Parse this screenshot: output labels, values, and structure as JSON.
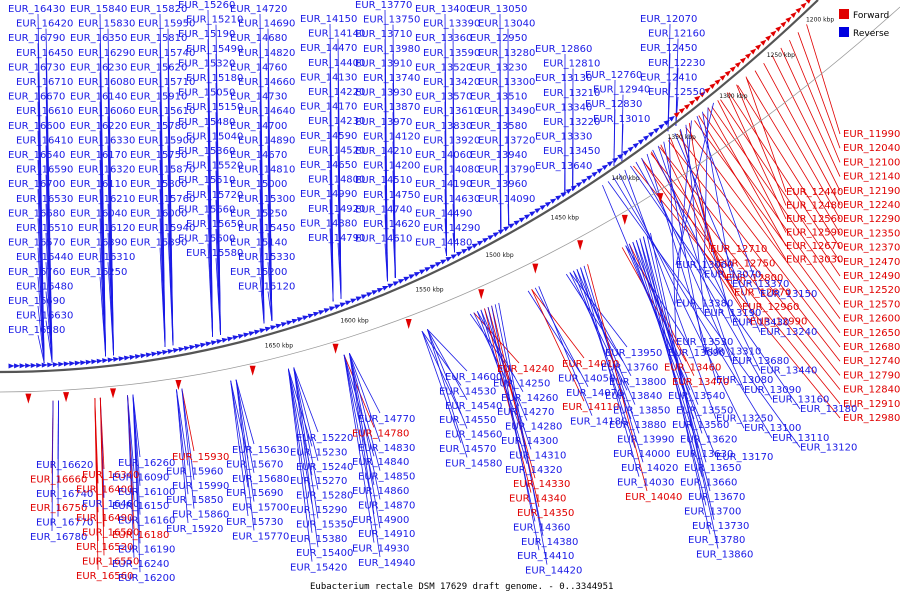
{
  "caption": "Eubacterium rectale DSM 17629 draft genome. - 0..3344951",
  "legend": [
    {
      "label": "Forward",
      "color": "#e00000"
    },
    {
      "label": "Reverse",
      "color": "#0000e0"
    }
  ],
  "colors": {
    "forward": "#e00000",
    "reverse": "#1a1ae6",
    "backbone": "#555555"
  },
  "ticks": [
    "1200 kbp",
    "1250 kbp",
    "1300 kbp",
    "1350 kbp",
    "1400 kbp",
    "1450 kbp",
    "1500 kbp",
    "1550 kbp",
    "1600 kbp",
    "1650 kbp"
  ],
  "top_labels": [
    [
      "EUR_16430",
      "EUR_16420",
      "EUR_16790",
      "EUR_16450",
      "EUR_16730",
      "EUR_16710",
      "EUR_16670",
      "EUR_16610",
      "EUR_16600",
      "EUR_16410",
      "EUR_16540",
      "EUR_16590",
      "EUR_16700",
      "EUR_16530",
      "EUR_16680",
      "EUR_16510",
      "EUR_16570",
      "EUR_16440",
      "EUR_16760",
      "EUR_16480",
      "EUR_16690",
      "EUR_16630",
      "EUR_16580"
    ],
    [
      "EUR_15840",
      "EUR_15830",
      "EUR_16350",
      "EUR_16290",
      "EUR_16230",
      "EUR_16080",
      "EUR_16140",
      "EUR_16060",
      "EUR_16220",
      "EUR_16330",
      "EUR_16170",
      "EUR_16320",
      "EUR_16110",
      "EUR_16210",
      "EUR_16040",
      "EUR_16120",
      "EUR_16390",
      "EUR_16310",
      "EUR_16250"
    ],
    [
      "EUR_15820",
      "EUR_15950",
      "EUR_15810",
      "EUR_15740",
      "EUR_15620",
      "EUR_15710",
      "EUR_15910",
      "EUR_15610",
      "EUR_15780",
      "EUR_15900",
      "EUR_15750",
      "EUR_15870",
      "EUR_15800",
      "EUR_15760",
      "EUR_16000",
      "EUR_15940",
      "EUR_15890"
    ],
    [
      "EUR_15260",
      "EUR_15210",
      "EUR_15190",
      "EUR_15490",
      "EUR_15320",
      "EUR_15180",
      "EUR_15050",
      "EUR_15150",
      "EUR_15480",
      "EUR_15040",
      "EUR_15360",
      "EUR_15520",
      "EUR_15510",
      "EUR_15720",
      "EUR_15660",
      "EUR_15650",
      "EUR_15600",
      "EUR_15580"
    ],
    [
      "EUR_14720",
      "EUR_14690",
      "EUR_14680",
      "EUR_14820",
      "EUR_14760",
      "EUR_14660",
      "EUR_14730",
      "EUR_14640",
      "EUR_14700",
      "EUR_14890",
      "EUR_14670",
      "EUR_14810",
      "EUR_15000",
      "EUR_15300",
      "EUR_15250",
      "EUR_15450",
      "EUR_15140",
      "EUR_15330",
      "EUR_15200",
      "EUR_15120"
    ],
    [
      "EUR_14150",
      "EUR_14140",
      "EUR_14470",
      "EUR_14400",
      "EUR_14130",
      "EUR_14220",
      "EUR_14170",
      "EUR_14230",
      "EUR_14590",
      "EUR_14520",
      "EUR_14650",
      "EUR_14800",
      "EUR_14990",
      "EUR_14920",
      "EUR_14880",
      "EUR_14790"
    ],
    [
      "EUR_13770",
      "EUR_13750",
      "EUR_13710",
      "EUR_13980",
      "EUR_13910",
      "EUR_13740",
      "EUR_13930",
      "EUR_13870",
      "EUR_13970",
      "EUR_14120",
      "EUR_14210",
      "EUR_14200",
      "EUR_14510",
      "EUR_14750",
      "EUR_14740",
      "EUR_14620",
      "EUR_14610"
    ],
    [
      "EUR_13400",
      "EUR_13390",
      "EUR_13360",
      "EUR_13590",
      "EUR_13520",
      "EUR_13420",
      "EUR_13570",
      "EUR_13610",
      "EUR_13830",
      "EUR_13920",
      "EUR_14060",
      "EUR_14080",
      "EUR_14190",
      "EUR_14630",
      "EUR_14490",
      "EUR_14290",
      "EUR_14480"
    ],
    [
      "EUR_13050",
      "EUR_13040",
      "EUR_12950",
      "EUR_13280",
      "EUR_13230",
      "EUR_13300",
      "EUR_13510",
      "EUR_13490",
      "EUR_13580",
      "EUR_13720",
      "EUR_13940",
      "EUR_13790",
      "EUR_13960",
      "EUR_14090"
    ],
    [
      "EUR_12860",
      "EUR_12810",
      "EUR_13130",
      "EUR_13210",
      "EUR_13340",
      "EUR_13220",
      "EUR_13330",
      "EUR_13450",
      "EUR_13640"
    ],
    [
      "EUR_12760",
      "EUR_12940",
      "EUR_12830",
      "EUR_13010"
    ],
    [
      "EUR_12070",
      "EUR_12160",
      "EUR_12450",
      "EUR_12230",
      "EUR_12410",
      "EUR_12550"
    ]
  ],
  "right_labels": [
    {
      "text": "EUR_11990",
      "strand": "forward"
    },
    {
      "text": "EUR_12040",
      "strand": "forward"
    },
    {
      "text": "EUR_12100",
      "strand": "forward"
    },
    {
      "text": "EUR_12140",
      "strand": "forward"
    },
    {
      "text": "EUR_12190",
      "strand": "forward"
    },
    {
      "text": "EUR_12240",
      "strand": "forward"
    },
    {
      "text": "EUR_12290",
      "strand": "forward"
    },
    {
      "text": "EUR_12350",
      "strand": "forward"
    },
    {
      "text": "EUR_12370",
      "strand": "forward"
    },
    {
      "text": "EUR_12470",
      "strand": "forward"
    },
    {
      "text": "EUR_12490",
      "strand": "forward"
    },
    {
      "text": "EUR_12520",
      "strand": "forward"
    },
    {
      "text": "EUR_12570",
      "strand": "forward"
    },
    {
      "text": "EUR_12600",
      "strand": "forward"
    },
    {
      "text": "EUR_12650",
      "strand": "forward"
    },
    {
      "text": "EUR_12680",
      "strand": "forward"
    },
    {
      "text": "EUR_12740",
      "strand": "forward"
    },
    {
      "text": "EUR_12790",
      "strand": "forward"
    },
    {
      "text": "EUR_12840",
      "strand": "forward"
    },
    {
      "text": "EUR_12910",
      "strand": "forward"
    },
    {
      "text": "EUR_12980",
      "strand": "forward"
    }
  ],
  "mid_right_labels": [
    {
      "text": "EUR_12440",
      "strand": "forward"
    },
    {
      "text": "EUR_12480",
      "strand": "forward"
    },
    {
      "text": "EUR_12560",
      "strand": "forward"
    },
    {
      "text": "EUR_12590",
      "strand": "forward"
    },
    {
      "text": "EUR_12670",
      "strand": "forward"
    },
    {
      "text": "EUR_13030",
      "strand": "forward"
    },
    {
      "text": "EUR_12710",
      "strand": "forward"
    },
    {
      "text": "EUR_12750",
      "strand": "forward"
    },
    {
      "text": "EUR_12800",
      "strand": "forward"
    },
    {
      "text": "EUR_12870",
      "strand": "forward"
    },
    {
      "text": "EUR_12960",
      "strand": "forward"
    },
    {
      "text": "EUR_12990",
      "strand": "forward"
    }
  ],
  "inner_right_labels": [
    {
      "text": "EUR_13060",
      "strand": "reverse"
    },
    {
      "text": "EUR_13070",
      "strand": "reverse"
    },
    {
      "text": "EUR_13370",
      "strand": "reverse"
    },
    {
      "text": "EUR_13150",
      "strand": "reverse"
    },
    {
      "text": "EUR_13380",
      "strand": "reverse"
    },
    {
      "text": "EUR_13190",
      "strand": "reverse"
    },
    {
      "text": "EUR_13430",
      "strand": "reverse"
    },
    {
      "text": "EUR_13240",
      "strand": "reverse"
    },
    {
      "text": "EUR_13530",
      "strand": "reverse"
    },
    {
      "text": "EUR_13310",
      "strand": "reverse"
    },
    {
      "text": "EUR_13680",
      "strand": "reverse"
    },
    {
      "text": "EUR_13440",
      "strand": "reverse"
    },
    {
      "text": "EUR_13080",
      "strand": "reverse"
    },
    {
      "text": "EUR_13090",
      "strand": "reverse"
    },
    {
      "text": "EUR_13160",
      "strand": "reverse"
    },
    {
      "text": "EUR_13180",
      "strand": "reverse"
    },
    {
      "text": "EUR_13250",
      "strand": "reverse"
    },
    {
      "text": "EUR_13100",
      "strand": "reverse"
    },
    {
      "text": "EUR_13110",
      "strand": "reverse"
    },
    {
      "text": "EUR_13120",
      "strand": "reverse"
    },
    {
      "text": "EUR_13170",
      "strand": "reverse"
    },
    {
      "text": "EUR_13290",
      "strand": "reverse"
    }
  ],
  "bottom_labels": [
    [
      {
        "text": "EUR_16620",
        "strand": "reverse"
      },
      {
        "text": "EUR_16660",
        "strand": "forward"
      },
      {
        "text": "EUR_16740",
        "strand": "reverse"
      },
      {
        "text": "EUR_16750",
        "strand": "forward"
      },
      {
        "text": "EUR_16770",
        "strand": "reverse"
      },
      {
        "text": "EUR_16780",
        "strand": "reverse"
      }
    ],
    [
      {
        "text": "EUR_16340",
        "strand": "forward"
      },
      {
        "text": "EUR_16400",
        "strand": "forward"
      },
      {
        "text": "EUR_16460",
        "strand": "reverse"
      },
      {
        "text": "EUR_16490",
        "strand": "forward"
      },
      {
        "text": "EUR_16500",
        "strand": "forward"
      },
      {
        "text": "EUR_16520",
        "strand": "forward"
      },
      {
        "text": "EUR_16550",
        "strand": "forward"
      },
      {
        "text": "EUR_16560",
        "strand": "forward"
      },
      {
        "text": "EUR_16640",
        "strand": "reverse"
      }
    ],
    [
      {
        "text": "EUR_16260",
        "strand": "reverse"
      },
      {
        "text": "EUR_16090",
        "strand": "reverse"
      },
      {
        "text": "EUR_16100",
        "strand": "reverse"
      },
      {
        "text": "EUR_16150",
        "strand": "reverse"
      },
      {
        "text": "EUR_16160",
        "strand": "reverse"
      },
      {
        "text": "EUR_16180",
        "strand": "forward"
      },
      {
        "text": "EUR_16190",
        "strand": "reverse"
      },
      {
        "text": "EUR_16240",
        "strand": "reverse"
      },
      {
        "text": "EUR_16200",
        "strand": "reverse"
      }
    ],
    [
      {
        "text": "EUR_15930",
        "strand": "forward"
      },
      {
        "text": "EUR_15960",
        "strand": "reverse"
      },
      {
        "text": "EUR_15990",
        "strand": "reverse"
      },
      {
        "text": "EUR_15850",
        "strand": "reverse"
      },
      {
        "text": "EUR_15860",
        "strand": "reverse"
      },
      {
        "text": "EUR_15920",
        "strand": "reverse"
      }
    ],
    [
      {
        "text": "EUR_15630",
        "strand": "reverse"
      },
      {
        "text": "EUR_15670",
        "strand": "reverse"
      },
      {
        "text": "EUR_15680",
        "strand": "reverse"
      },
      {
        "text": "EUR_15690",
        "strand": "reverse"
      },
      {
        "text": "EUR_15700",
        "strand": "reverse"
      },
      {
        "text": "EUR_15730",
        "strand": "reverse"
      },
      {
        "text": "EUR_15770",
        "strand": "reverse"
      }
    ],
    [
      {
        "text": "EUR_15220",
        "strand": "reverse"
      },
      {
        "text": "EUR_15230",
        "strand": "reverse"
      },
      {
        "text": "EUR_15240",
        "strand": "reverse"
      },
      {
        "text": "EUR_15270",
        "strand": "reverse"
      },
      {
        "text": "EUR_15280",
        "strand": "reverse"
      },
      {
        "text": "EUR_15290",
        "strand": "reverse"
      },
      {
        "text": "EUR_15350",
        "strand": "reverse"
      },
      {
        "text": "EUR_15380",
        "strand": "reverse"
      },
      {
        "text": "EUR_15400",
        "strand": "reverse"
      },
      {
        "text": "EUR_15420",
        "strand": "reverse"
      }
    ],
    [
      {
        "text": "EUR_14770",
        "strand": "reverse"
      },
      {
        "text": "EUR_14780",
        "strand": "forward"
      },
      {
        "text": "EUR_14830",
        "strand": "reverse"
      },
      {
        "text": "EUR_14840",
        "strand": "reverse"
      },
      {
        "text": "EUR_14850",
        "strand": "reverse"
      },
      {
        "text": "EUR_14860",
        "strand": "reverse"
      },
      {
        "text": "EUR_14870",
        "strand": "reverse"
      },
      {
        "text": "EUR_14900",
        "strand": "reverse"
      },
      {
        "text": "EUR_14910",
        "strand": "reverse"
      },
      {
        "text": "EUR_14930",
        "strand": "reverse"
      },
      {
        "text": "EUR_14940",
        "strand": "reverse"
      }
    ],
    [
      {
        "text": "EUR_14600",
        "strand": "reverse"
      },
      {
        "text": "EUR_14530",
        "strand": "reverse"
      },
      {
        "text": "EUR_14540",
        "strand": "reverse"
      },
      {
        "text": "EUR_14550",
        "strand": "reverse"
      },
      {
        "text": "EUR_14560",
        "strand": "reverse"
      },
      {
        "text": "EUR_14570",
        "strand": "reverse"
      },
      {
        "text": "EUR_14580",
        "strand": "reverse"
      }
    ],
    [
      {
        "text": "EUR_14240",
        "strand": "forward"
      },
      {
        "text": "EUR_14250",
        "strand": "reverse"
      },
      {
        "text": "EUR_14260",
        "strand": "reverse"
      },
      {
        "text": "EUR_14270",
        "strand": "reverse"
      },
      {
        "text": "EUR_14280",
        "strand": "reverse"
      },
      {
        "text": "EUR_14300",
        "strand": "reverse"
      },
      {
        "text": "EUR_14310",
        "strand": "reverse"
      },
      {
        "text": "EUR_14320",
        "strand": "reverse"
      },
      {
        "text": "EUR_14330",
        "strand": "forward"
      },
      {
        "text": "EUR_14340",
        "strand": "forward"
      },
      {
        "text": "EUR_14350",
        "strand": "forward"
      },
      {
        "text": "EUR_14360",
        "strand": "reverse"
      },
      {
        "text": "EUR_14380",
        "strand": "reverse"
      },
      {
        "text": "EUR_14410",
        "strand": "reverse"
      },
      {
        "text": "EUR_14420",
        "strand": "reverse"
      }
    ],
    [
      {
        "text": "EUR_14010",
        "strand": "forward"
      },
      {
        "text": "EUR_14050",
        "strand": "reverse"
      },
      {
        "text": "EUR_14070",
        "strand": "reverse"
      },
      {
        "text": "EUR_14110",
        "strand": "forward"
      },
      {
        "text": "EUR_14180",
        "strand": "reverse"
      }
    ],
    [
      {
        "text": "EUR_13950",
        "strand": "reverse"
      },
      {
        "text": "EUR_13760",
        "strand": "reverse"
      },
      {
        "text": "EUR_13800",
        "strand": "reverse"
      },
      {
        "text": "EUR_13840",
        "strand": "reverse"
      },
      {
        "text": "EUR_13850",
        "strand": "reverse"
      },
      {
        "text": "EUR_13880",
        "strand": "reverse"
      },
      {
        "text": "EUR_13990",
        "strand": "reverse"
      },
      {
        "text": "EUR_14000",
        "strand": "reverse"
      },
      {
        "text": "EUR_14020",
        "strand": "reverse"
      },
      {
        "text": "EUR_14030",
        "strand": "reverse"
      },
      {
        "text": "EUR_14040",
        "strand": "forward"
      }
    ],
    [
      {
        "text": "EUR_13690",
        "strand": "reverse"
      },
      {
        "text": "EUR_13460",
        "strand": "forward"
      },
      {
        "text": "EUR_13470",
        "strand": "forward"
      },
      {
        "text": "EUR_13540",
        "strand": "reverse"
      },
      {
        "text": "EUR_13550",
        "strand": "reverse"
      },
      {
        "text": "EUR_13560",
        "strand": "reverse"
      },
      {
        "text": "EUR_13620",
        "strand": "reverse"
      },
      {
        "text": "EUR_13630",
        "strand": "reverse"
      },
      {
        "text": "EUR_13650",
        "strand": "reverse"
      },
      {
        "text": "EUR_13660",
        "strand": "reverse"
      },
      {
        "text": "EUR_13670",
        "strand": "reverse"
      },
      {
        "text": "EUR_13700",
        "strand": "reverse"
      },
      {
        "text": "EUR_13730",
        "strand": "reverse"
      },
      {
        "text": "EUR_13780",
        "strand": "reverse"
      },
      {
        "text": "EUR_13860",
        "strand": "reverse"
      }
    ]
  ]
}
